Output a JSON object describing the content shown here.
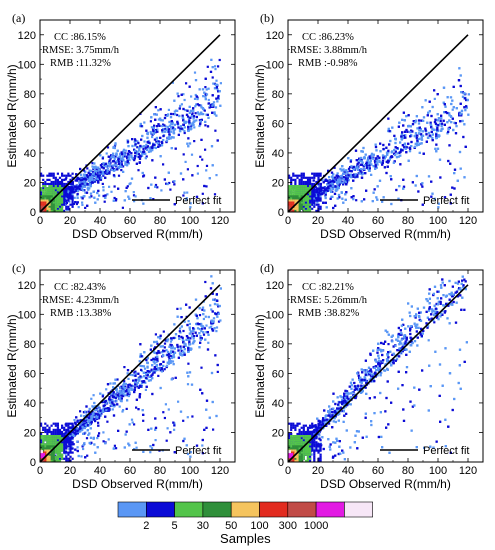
{
  "colorbar": {
    "title": "Samples",
    "tick_labels": [
      "2",
      "5",
      "30",
      "50",
      "100",
      "300",
      "1000"
    ],
    "colors": [
      "#5a97f5",
      "#0b0bd6",
      "#53c44a",
      "#2f8f3a",
      "#f5c45e",
      "#e22b1f",
      "#c14b47",
      "#e21ae3",
      "#f7e7f7"
    ]
  },
  "chart_data": [
    {
      "type": "heatmap",
      "panel_label": "(a)",
      "stats": {
        "cc": "CC :86.15%",
        "rmse": "RMSE: 3.75mm/h",
        "rmb": "RMB :11.32%"
      },
      "xlabel": "DSD Observed R(mm/h)",
      "ylabel": "Estimated R(mm/h)",
      "xlim": [
        0,
        130
      ],
      "ylim": [
        0,
        130
      ],
      "x_ticks": [
        "0",
        "20",
        "40",
        "60",
        "80",
        "100",
        "120"
      ],
      "y_ticks": [
        "0",
        "20",
        "40",
        "60",
        "80",
        "100",
        "120"
      ],
      "reference_line": {
        "label": "Perfect fit",
        "points": [
          [
            0,
            0
          ],
          [
            120,
            120
          ]
        ]
      },
      "scatter_spread": {
        "x_max": 120,
        "y_max": 110,
        "slope": 0.55
      }
    },
    {
      "type": "heatmap",
      "panel_label": "(b)",
      "stats": {
        "cc": "CC :86.23%",
        "rmse": "RMSE: 3.88mm/h",
        "rmb": "RMB :-0.98%"
      },
      "xlabel": "DSD Observed R(mm/h)",
      "ylabel": "Estimated R(mm/h)",
      "xlim": [
        0,
        130
      ],
      "ylim": [
        0,
        130
      ],
      "x_ticks": [
        "0",
        "20",
        "40",
        "60",
        "80",
        "100",
        "120"
      ],
      "y_ticks": [
        "0",
        "20",
        "40",
        "60",
        "80",
        "100",
        "120"
      ],
      "reference_line": {
        "label": "Perfect fit",
        "points": [
          [
            0,
            0
          ],
          [
            120,
            120
          ]
        ]
      },
      "scatter_spread": {
        "x_max": 120,
        "y_max": 105,
        "slope": 0.5
      }
    },
    {
      "type": "heatmap",
      "panel_label": "(c)",
      "stats": {
        "cc": "CC :82.43%",
        "rmse": "RMSE: 4.23mm/h",
        "rmb": "RMB :13.38%"
      },
      "xlabel": "DSD Observed R(mm/h)",
      "ylabel": "Estimated R(mm/h)",
      "xlim": [
        0,
        130
      ],
      "ylim": [
        0,
        130
      ],
      "x_ticks": [
        "0",
        "20",
        "40",
        "60",
        "80",
        "100",
        "120"
      ],
      "y_ticks": [
        "0",
        "20",
        "40",
        "60",
        "80",
        "100",
        "120"
      ],
      "reference_line": {
        "label": "Perfect fit",
        "points": [
          [
            0,
            0
          ],
          [
            120,
            120
          ]
        ]
      },
      "scatter_spread": {
        "x_max": 120,
        "y_max": 125,
        "slope": 0.75
      }
    },
    {
      "type": "heatmap",
      "panel_label": "(d)",
      "stats": {
        "cc": "CC :82.21%",
        "rmse": "RMSE: 5.26mm/h",
        "rmb": "RMB :38.82%"
      },
      "xlabel": "DSD Observed R(mm/h)",
      "ylabel": "Estimated R(mm/h)",
      "xlim": [
        0,
        130
      ],
      "ylim": [
        0,
        130
      ],
      "x_ticks": [
        "0",
        "20",
        "40",
        "60",
        "80",
        "100",
        "120"
      ],
      "y_ticks": [
        "0",
        "20",
        "40",
        "60",
        "80",
        "100",
        "120"
      ],
      "reference_line": {
        "label": "Perfect fit",
        "points": [
          [
            0,
            0
          ],
          [
            120,
            120
          ]
        ]
      },
      "scatter_spread": {
        "x_max": 120,
        "y_max": 125,
        "slope": 0.95
      }
    }
  ]
}
